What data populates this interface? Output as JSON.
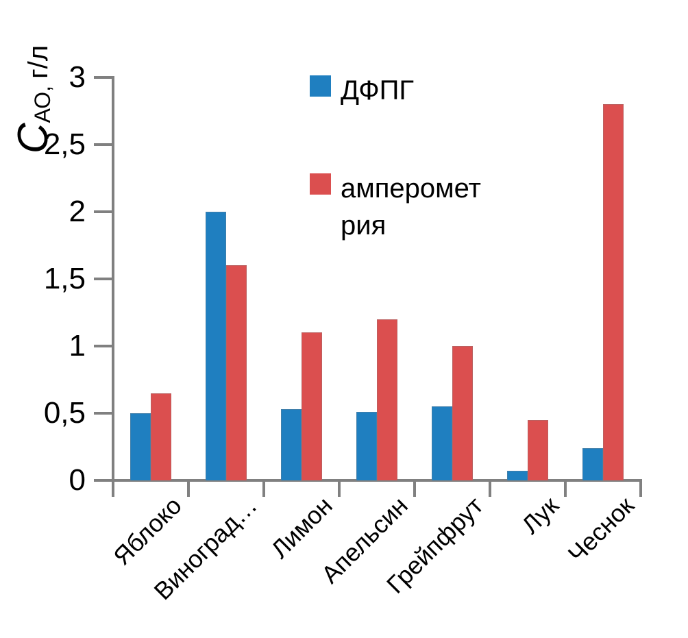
{
  "chart_data": {
    "type": "bar",
    "title": "",
    "ylabel": {
      "symbol": "C",
      "subscript": "АО,",
      "units": "г/л"
    },
    "xlabel": "",
    "ylim": [
      0,
      3
    ],
    "grid": false,
    "legend_position": "top-center-inside",
    "y_ticks": [
      {
        "value": 0,
        "label": "0"
      },
      {
        "value": 0.5,
        "label": "0,5"
      },
      {
        "value": 1,
        "label": "1"
      },
      {
        "value": 1.5,
        "label": "1,5"
      },
      {
        "value": 2,
        "label": "2"
      },
      {
        "value": 2.5,
        "label": "2,5"
      },
      {
        "value": 3,
        "label": "3"
      }
    ],
    "categories": [
      "Яблоко",
      "Виноград…",
      "Лимон",
      "Апельсин",
      "Грейпфрут",
      "Лук",
      "Чеснок"
    ],
    "series": [
      {
        "name": "ДФПГ",
        "color": "#1F7FC0",
        "values": [
          0.5,
          2.0,
          0.53,
          0.51,
          0.55,
          0.07,
          0.24
        ]
      },
      {
        "name": "амперометрия",
        "color": "#DB4F4F",
        "values": [
          0.65,
          1.6,
          1.1,
          1.2,
          1.0,
          0.45,
          2.8
        ]
      }
    ]
  },
  "legend": {
    "items": [
      {
        "color": "#1F7FC0",
        "lines": [
          "ДФПГ"
        ]
      },
      {
        "color": "#DB4F4F",
        "lines": [
          "амперомет",
          "рия"
        ]
      }
    ]
  },
  "colors": {
    "series_blue": "#1F7FC0",
    "series_red": "#DB4F4F",
    "axis": "#808080",
    "text": "#000000",
    "background": "#FFFFFF"
  }
}
